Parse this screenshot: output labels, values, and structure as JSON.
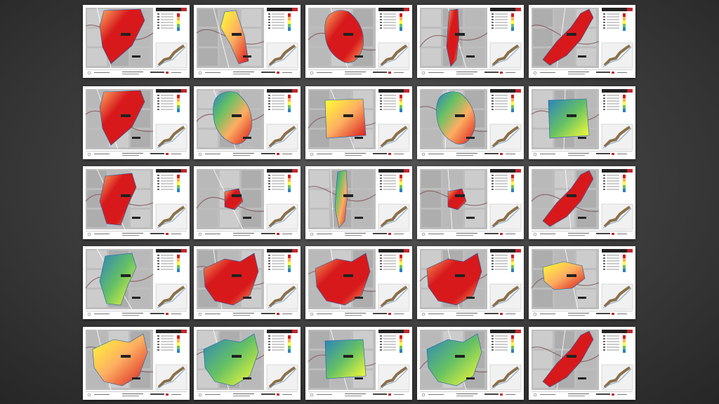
{
  "colors": {
    "background": "#333333",
    "sheet": "#ffffff",
    "title_bar": "#222222",
    "title_accent": "#c0272d",
    "depth_ramp": [
      "#d7191c",
      "#fdae61",
      "#ffff33",
      "#66c164",
      "#2b83ba"
    ]
  },
  "layout": {
    "rows": 5,
    "columns": 5
  },
  "sheets": [
    {
      "ramp": "hot",
      "shape": "triangle"
    },
    {
      "ramp": "warm",
      "shape": "narrow"
    },
    {
      "ramp": "hot",
      "shape": "oval"
    },
    {
      "ramp": "hot",
      "shape": "sliver"
    },
    {
      "ramp": "hot",
      "shape": "diagonal"
    },
    {
      "ramp": "hot",
      "shape": "triangle"
    },
    {
      "ramp": "mixed",
      "shape": "oval"
    },
    {
      "ramp": "warm",
      "shape": "square"
    },
    {
      "ramp": "mixed",
      "shape": "oval"
    },
    {
      "ramp": "cool",
      "shape": "square"
    },
    {
      "ramp": "hot",
      "shape": "blob"
    },
    {
      "ramp": "hot",
      "shape": "small"
    },
    {
      "ramp": "mixed",
      "shape": "sliver"
    },
    {
      "ramp": "hot",
      "shape": "small"
    },
    {
      "ramp": "hot",
      "shape": "diagonal"
    },
    {
      "ramp": "cool",
      "shape": "blob"
    },
    {
      "ramp": "hot",
      "shape": "wide"
    },
    {
      "ramp": "hot",
      "shape": "wide"
    },
    {
      "ramp": "hot",
      "shape": "wide"
    },
    {
      "ramp": "warm",
      "shape": "river"
    },
    {
      "ramp": "warm",
      "shape": "wide"
    },
    {
      "ramp": "cool",
      "shape": "wide"
    },
    {
      "ramp": "cool",
      "shape": "square"
    },
    {
      "ramp": "cool",
      "shape": "wide"
    },
    {
      "ramp": "hot",
      "shape": "diagonal"
    }
  ]
}
